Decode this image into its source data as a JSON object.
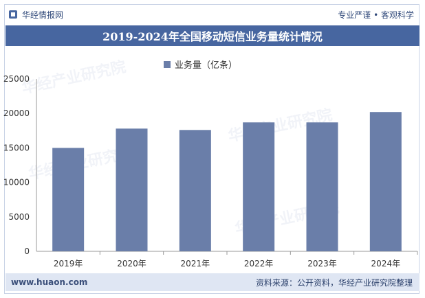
{
  "header": {
    "brand": "华经情报网",
    "tagline": "专业严谨 • 客观科学"
  },
  "watermark": "华经产业研究院",
  "footer": {
    "website": "www.huaon.com",
    "source": "资料来源：公开资料，华经产业研究院整理"
  },
  "colors": {
    "bar": "#6a7ea9",
    "title_bg": "#4766a0",
    "footer_bg": "#dfe6f3"
  },
  "chart_data": {
    "type": "bar",
    "title": "2019-2024年全国移动短信业务量统计情况",
    "categories": [
      "2019年",
      "2020年",
      "2021年",
      "2022年",
      "2023年",
      "2024年"
    ],
    "series": [
      {
        "name": "业务量（亿条）",
        "values": [
          15000,
          17800,
          17600,
          18700,
          18700,
          20200
        ]
      }
    ],
    "ylim": [
      0,
      25000
    ],
    "yticks": [
      0,
      5000,
      10000,
      15000,
      20000,
      25000
    ],
    "xlabel": "",
    "ylabel": ""
  }
}
